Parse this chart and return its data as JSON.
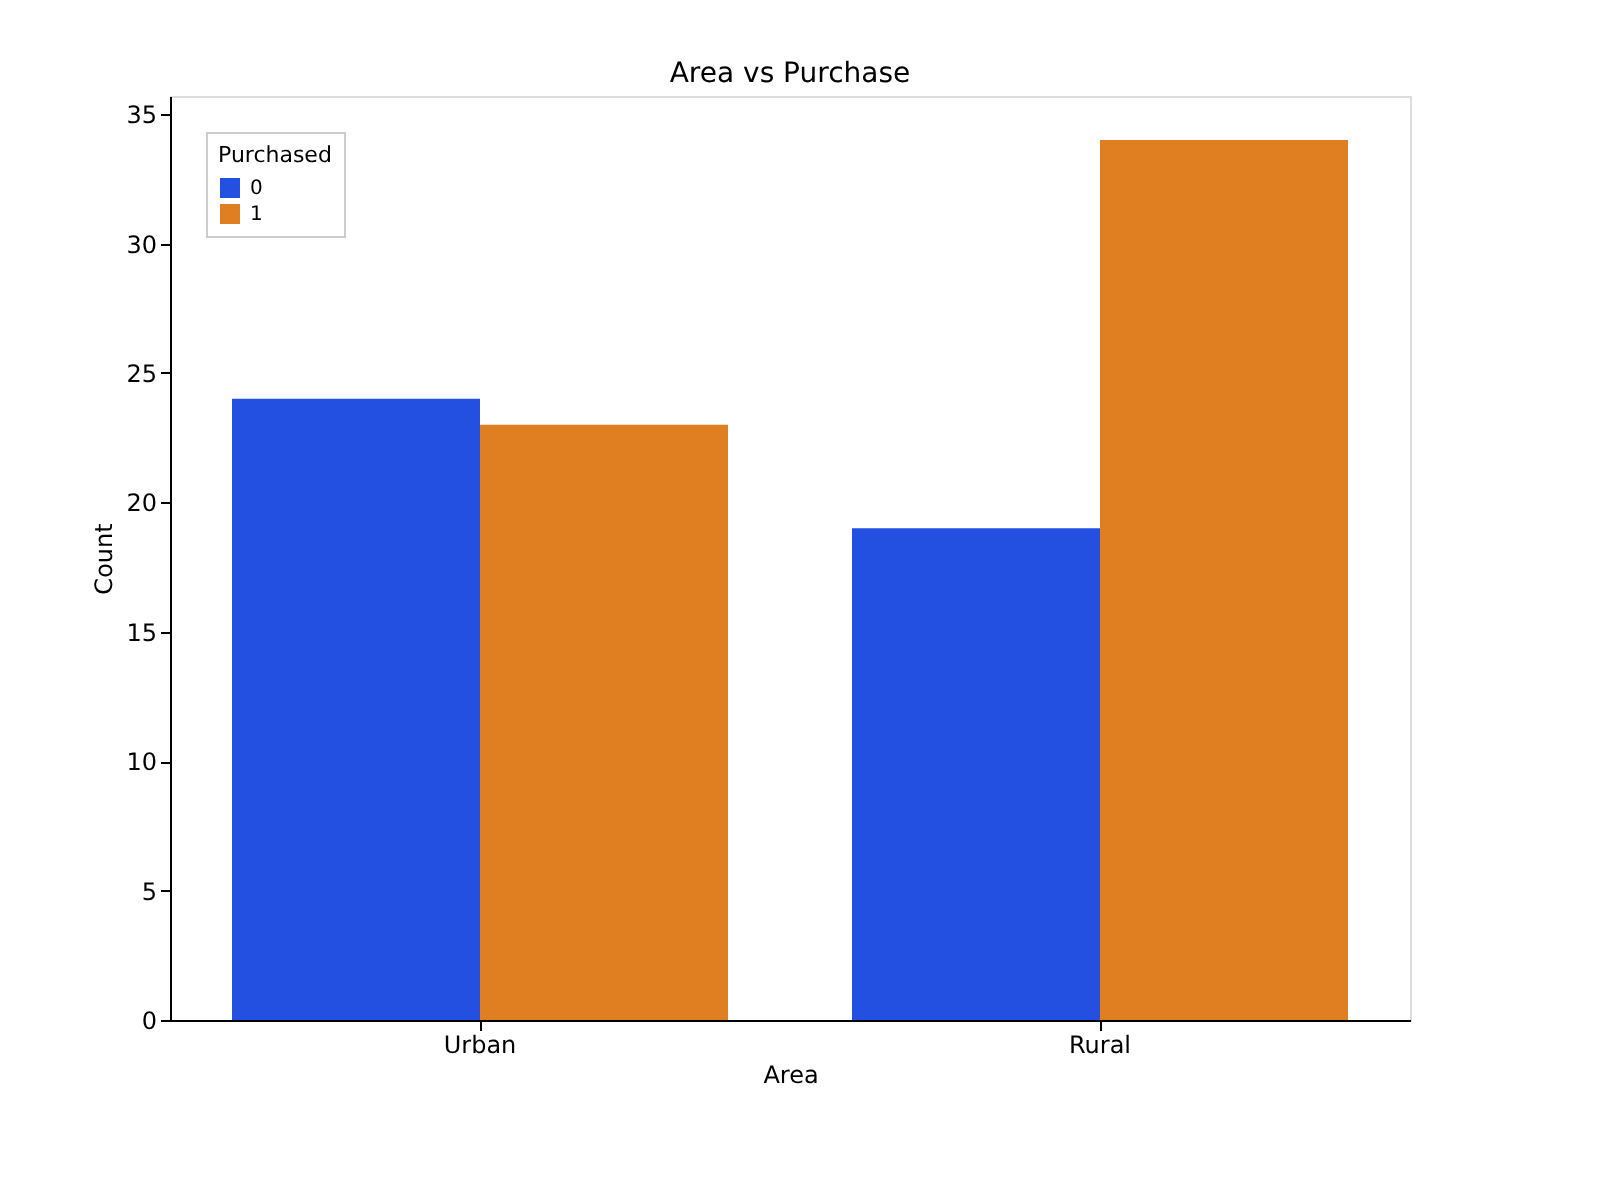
{
  "chart_data": {
    "type": "bar",
    "title": "Area vs Purchase",
    "xlabel": "Area",
    "ylabel": "Count",
    "legend_title": "Purchased",
    "categories": [
      "Urban",
      "Rural"
    ],
    "series": [
      {
        "name": "0",
        "color": "#2350e0",
        "values": [
          24,
          19
        ]
      },
      {
        "name": "1",
        "color": "#e07e22",
        "values": [
          23,
          34
        ]
      }
    ],
    "ylim": [
      0,
      35.7
    ],
    "yticks": [
      0,
      5,
      10,
      15,
      20,
      25,
      30,
      35
    ],
    "grid": false,
    "legend": "top left"
  }
}
